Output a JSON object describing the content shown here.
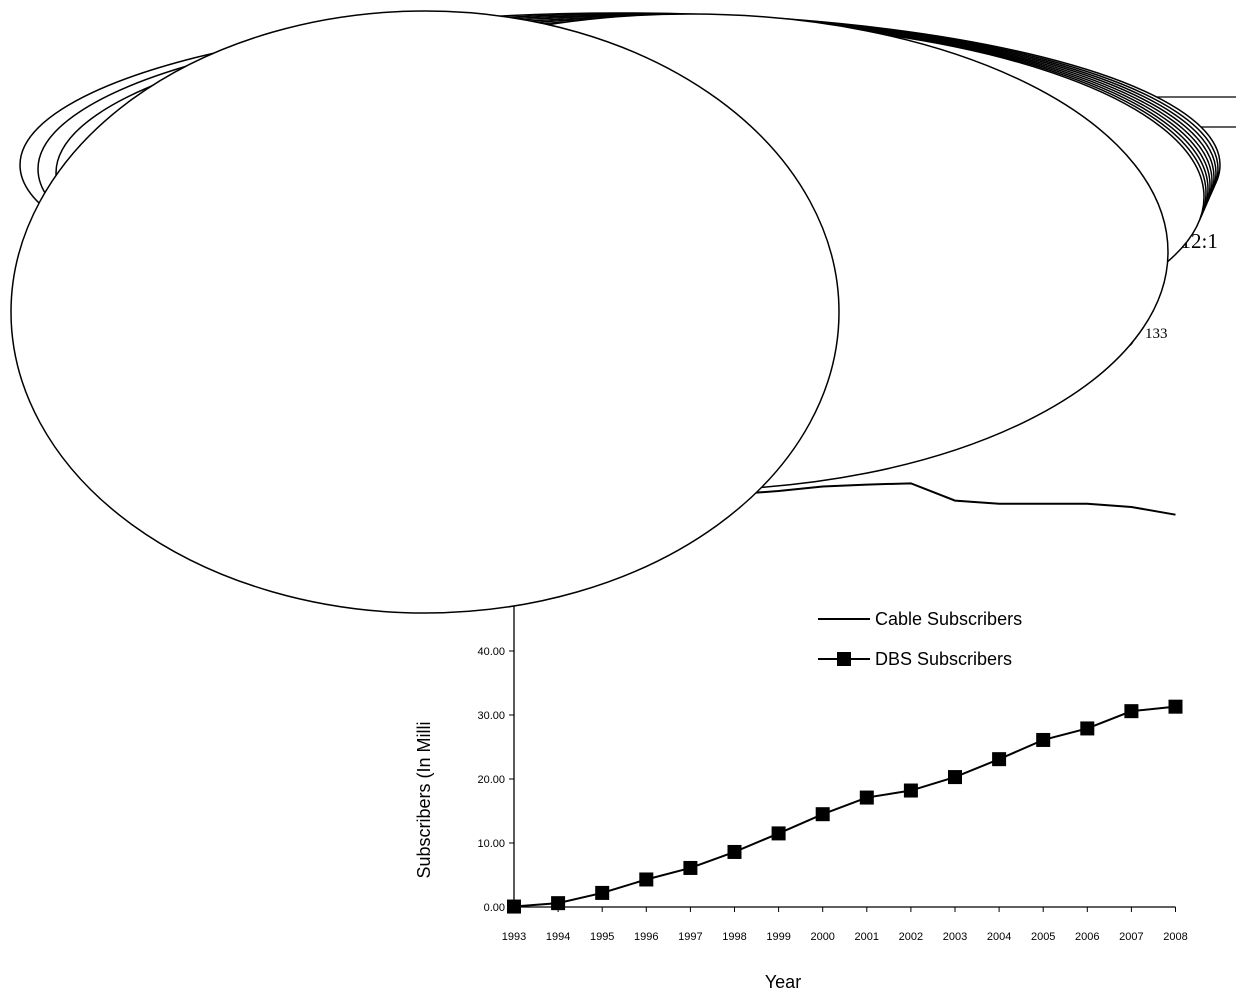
{
  "fragments": {
    "time_text": ". 12:1",
    "superscript": "133",
    "paren": ")"
  },
  "chart_data": {
    "type": "line",
    "title": "",
    "xlabel": "Year",
    "ylabel": "Subscribers (In Milli",
    "x": [
      "1993",
      "1994",
      "1995",
      "1996",
      "1997",
      "1998",
      "1999",
      "2000",
      "2001",
      "2002",
      "2003",
      "2004",
      "2005",
      "2006",
      "2007",
      "2008"
    ],
    "ylim": [
      0,
      80
    ],
    "yticks_visible": [
      "0.00",
      "10.00",
      "20.00",
      "30.00",
      "40.00"
    ],
    "legend_position": "center-right",
    "series": [
      {
        "name": "Cable Subscribers",
        "marker": "none",
        "color": "#000000",
        "values": [
          null,
          null,
          null,
          null,
          null,
          64.5,
          65.0,
          65.7,
          66.0,
          66.2,
          63.5,
          63.0,
          63.0,
          63.0,
          62.5,
          61.3
        ]
      },
      {
        "name": "DBS  Subscribers",
        "marker": "square",
        "color": "#000000",
        "values": [
          0.07,
          0.6,
          2.2,
          4.3,
          6.1,
          8.6,
          11.5,
          14.5,
          17.1,
          18.2,
          20.3,
          23.1,
          26.1,
          27.9,
          30.6,
          31.3
        ]
      }
    ]
  }
}
